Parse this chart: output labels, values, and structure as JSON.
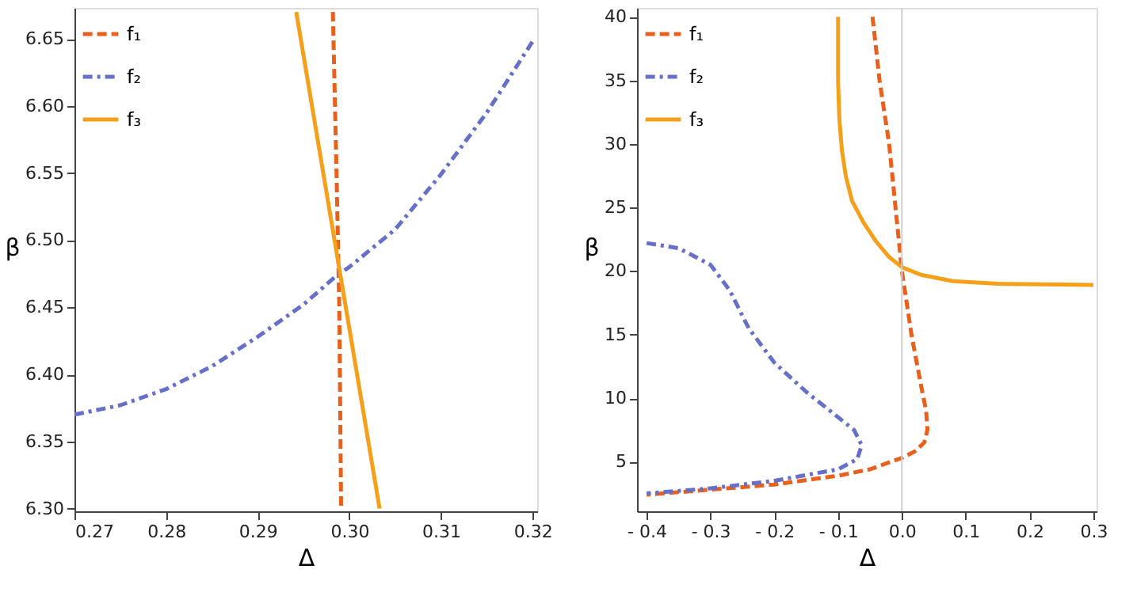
{
  "chart_data": [
    {
      "type": "line",
      "xlabel": "Δ",
      "ylabel": "β",
      "xlim": [
        0.27,
        0.3205
      ],
      "ylim": [
        6.298,
        6.673
      ],
      "xticks": [
        0.27,
        0.28,
        0.29,
        {
          "value": 0.3,
          "label": "0.30"
        },
        0.31,
        0.32
      ],
      "yticks": [
        {
          "value": 6.3,
          "label": "6.30"
        },
        6.35,
        {
          "value": 6.4,
          "label": "6.40"
        },
        6.45,
        {
          "value": 6.5,
          "label": "6.50"
        },
        6.55,
        {
          "value": 6.6,
          "label": "6.60"
        },
        6.65
      ],
      "grid": false,
      "legend": "top left",
      "marker": "none",
      "series": [
        {
          "name": "f₁",
          "color": "#e8601c",
          "line_style": "dashed",
          "x": [
            0.2982,
            0.2986,
            0.2989,
            0.2991
          ],
          "values": [
            6.67,
            6.55,
            6.45,
            6.3
          ]
        },
        {
          "name": "f₂",
          "color": "#6670c8",
          "line_style": "dashdot",
          "x": [
            0.27,
            0.275,
            0.28,
            0.285,
            0.29,
            0.295,
            0.2985,
            0.3,
            0.305,
            0.31,
            0.315,
            0.32
          ],
          "values": [
            6.37,
            6.377,
            6.389,
            6.406,
            6.428,
            6.452,
            6.473,
            6.48,
            6.508,
            6.549,
            6.595,
            6.648
          ]
        },
        {
          "name": "f₃",
          "color": "#f5a01a",
          "line_style": "solid",
          "x": [
            0.2942,
            0.3033
          ],
          "values": [
            6.67,
            6.3
          ]
        }
      ]
    },
    {
      "type": "line",
      "xlabel": "Δ",
      "ylabel": "β",
      "xlim": [
        -0.415,
        0.305
      ],
      "ylim": [
        1.1,
        40.7
      ],
      "xticks": [
        {
          "value": -0.4,
          "label": "- 0.4"
        },
        {
          "value": -0.3,
          "label": "- 0.3"
        },
        {
          "value": -0.2,
          "label": "- 0.2"
        },
        {
          "value": -0.1,
          "label": "- 0.1"
        },
        {
          "value": 0,
          "label": "0.0"
        },
        0.1,
        0.2,
        0.3
      ],
      "yticks": [
        5,
        10,
        15,
        20,
        25,
        30,
        35,
        40
      ],
      "grid": false,
      "legend": "top left",
      "marker": "none",
      "ref_lines": [
        {
          "axis": "x",
          "value": 0,
          "color": "#d0d0d0"
        }
      ],
      "series": [
        {
          "name": "f₁",
          "color": "#e8601c",
          "line_style": "dashed",
          "x": [
            -0.046,
            -0.035,
            -0.02,
            -0.01,
            0,
            0.015,
            0.03,
            0.038,
            0.04,
            0.035,
            0.02,
            0,
            -0.05,
            -0.1,
            -0.2,
            -0.3,
            -0.4
          ],
          "values": [
            40,
            35,
            30,
            25,
            20,
            15,
            11,
            9,
            7.5,
            6.5,
            5.8,
            5.3,
            4.4,
            3.9,
            3.2,
            2.8,
            2.4
          ]
        },
        {
          "name": "f₂",
          "color": "#6670c8",
          "line_style": "dashdot",
          "x": [
            -0.4,
            -0.35,
            -0.3,
            -0.27,
            -0.24,
            -0.2,
            -0.15,
            -0.1,
            -0.075,
            -0.063,
            -0.07,
            -0.1,
            -0.2,
            -0.3,
            -0.4
          ],
          "values": [
            22.2,
            21.8,
            20.5,
            18.5,
            15.5,
            12.8,
            10.5,
            8.5,
            7.5,
            6.3,
            5.2,
            4.4,
            3.5,
            2.9,
            2.5
          ]
        },
        {
          "name": "f₃",
          "color": "#f5a01a",
          "line_style": "solid",
          "x": [
            -0.1,
            -0.1,
            -0.098,
            -0.094,
            -0.088,
            -0.078,
            -0.06,
            -0.04,
            -0.02,
            0,
            0.03,
            0.08,
            0.15,
            0.3
          ],
          "values": [
            40,
            35,
            32,
            29.5,
            27.5,
            25.5,
            23.8,
            22.3,
            21.1,
            20.3,
            19.7,
            19.2,
            19.0,
            18.9
          ]
        }
      ]
    }
  ]
}
